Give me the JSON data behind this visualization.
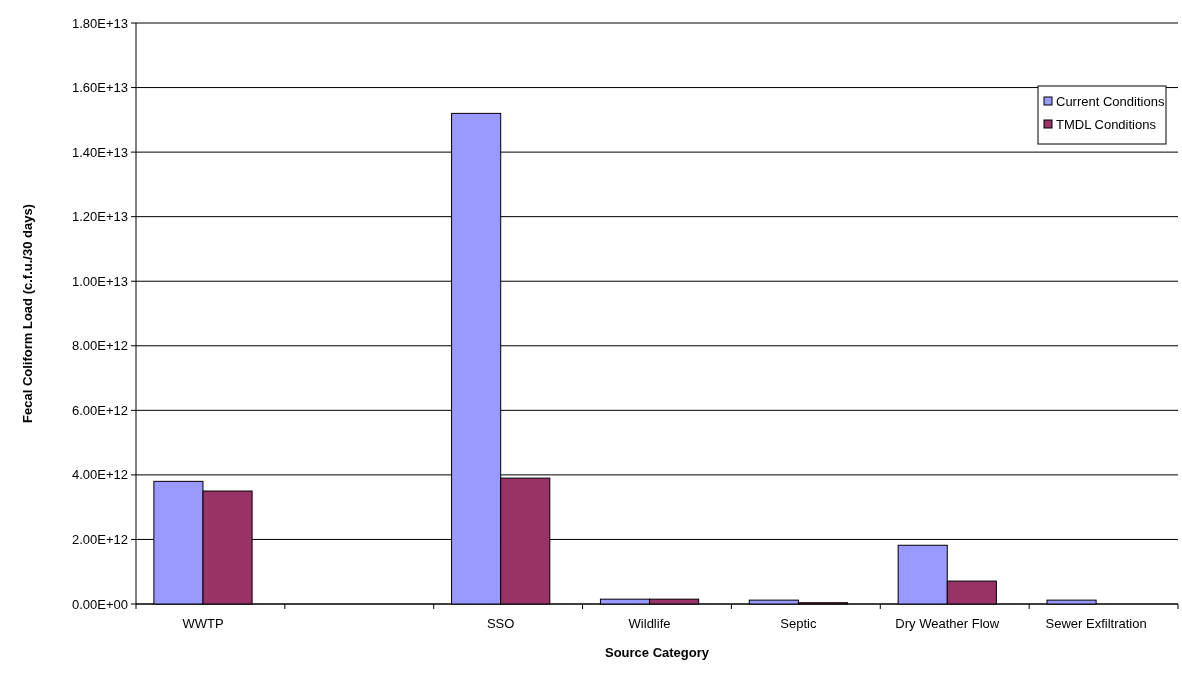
{
  "chart_data": {
    "type": "bar",
    "xlabel": "Source Category",
    "ylabel": "Fecal Coliform Load (c.f.u./30 days)",
    "categories": [
      "WWTP",
      null,
      "SSO",
      "Wildlife",
      "Septic",
      "Dry Weather Flow",
      "Sewer Exfiltration"
    ],
    "series": [
      {
        "name": "Current Conditions",
        "color": "#9999ff",
        "values": [
          3800000000000.0,
          null,
          15200000000000.0,
          150000000000.0,
          120000000000.0,
          1820000000000.0,
          120000000000.0
        ]
      },
      {
        "name": "TMDL Conditions",
        "color": "#993366",
        "values": [
          3500000000000.0,
          null,
          3900000000000.0,
          150000000000.0,
          40000000000.0,
          710000000000.0,
          0
        ]
      }
    ],
    "ylim": [
      0,
      18000000000000.0
    ],
    "yticks": [
      {
        "value": 0,
        "label": "0.00E+00"
      },
      {
        "value": 2000000000000.0,
        "label": "2.00E+12"
      },
      {
        "value": 4000000000000.0,
        "label": "4.00E+12"
      },
      {
        "value": 6000000000000.0,
        "label": "6.00E+12"
      },
      {
        "value": 8000000000000.0,
        "label": "8.00E+12"
      },
      {
        "value": 10000000000000.0,
        "label": "1.00E+13"
      },
      {
        "value": 12000000000000.0,
        "label": "1.20E+13"
      },
      {
        "value": 14000000000000.0,
        "label": "1.40E+13"
      },
      {
        "value": 16000000000000.0,
        "label": "1.60E+13"
      },
      {
        "value": 18000000000000.0,
        "label": "1.80E+13"
      }
    ],
    "grid": "y",
    "legend": "top right"
  }
}
